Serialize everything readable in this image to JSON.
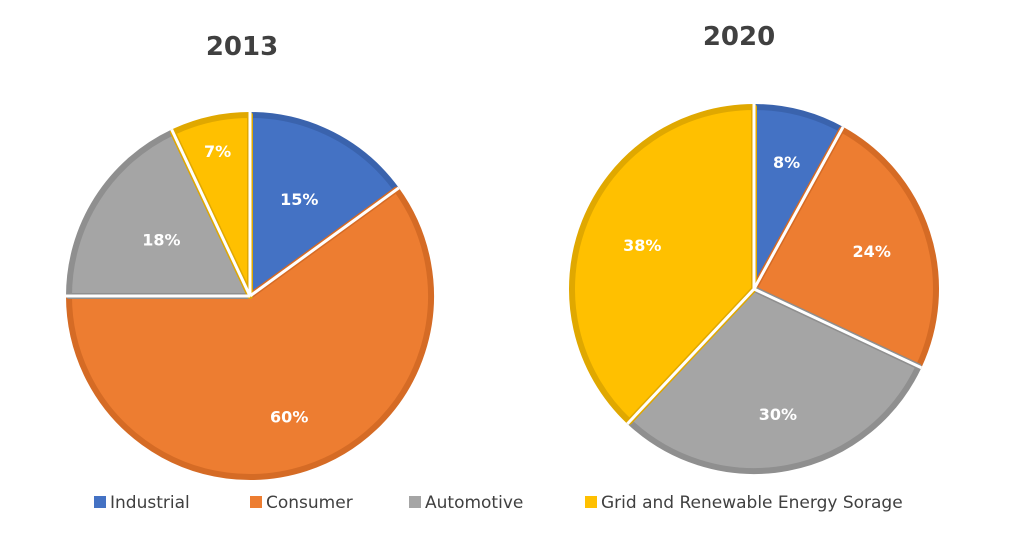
{
  "chart_data": [
    {
      "type": "pie",
      "title": "2013",
      "slices": [
        {
          "label": "Industrial",
          "value": 15,
          "display": "15%"
        },
        {
          "label": "Consumer",
          "value": 60,
          "display": "60%"
        },
        {
          "label": "Automotive",
          "value": 18,
          "display": "18%"
        },
        {
          "label": "Grid and Renewable Energy Sorage",
          "value": 7,
          "display": "7%"
        }
      ]
    },
    {
      "type": "pie",
      "title": "2020",
      "slices": [
        {
          "label": "Industrial",
          "value": 8,
          "display": "8%"
        },
        {
          "label": "Consumer",
          "value": 24,
          "display": "24%"
        },
        {
          "label": "Automotive",
          "value": 30,
          "display": "30%"
        },
        {
          "label": "Grid and Renewable Energy Sorage",
          "value": 38,
          "display": "38%"
        }
      ]
    }
  ],
  "legend": {
    "placement": "bottom",
    "items": [
      {
        "label": "Industrial",
        "color": "#4472C4",
        "border": "#3a63ad"
      },
      {
        "label": "Consumer",
        "color": "#ED7D31",
        "border": "#d56b25"
      },
      {
        "label": "Automotive",
        "color": "#A5A5A5",
        "border": "#8f8f8f"
      },
      {
        "label": "Grid and Renewable Energy Sorage",
        "color": "#FFC000",
        "border": "#e0a800"
      }
    ]
  }
}
